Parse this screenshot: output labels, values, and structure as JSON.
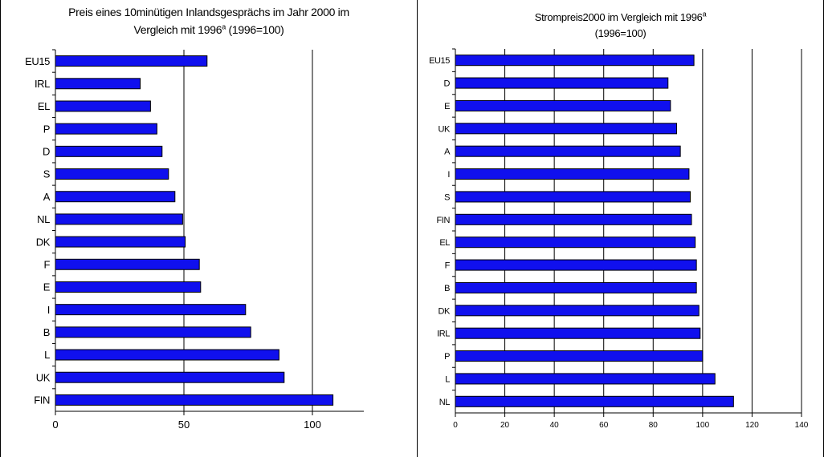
{
  "chart_data": [
    {
      "type": "bar",
      "orientation": "horizontal",
      "title": {
        "line1": "Preis eines 10minütigen Inlandsgesprächs im Jahr 2000 im",
        "line2_pre": "Vergleich mit 1996",
        "sup": "a",
        "line2_post": " (1996=100)"
      },
      "categories": [
        "EU15",
        "IRL",
        "EL",
        "P",
        "D",
        "S",
        "A",
        "NL",
        "DK",
        "F",
        "E",
        "I",
        "B",
        "L",
        "UK",
        "FIN"
      ],
      "values": [
        59,
        33,
        37,
        39.5,
        41.5,
        44,
        46.5,
        49.5,
        50.5,
        56,
        56.5,
        74,
        76,
        87,
        89,
        108
      ],
      "xlim": [
        0,
        120
      ],
      "xticks": [
        0,
        50,
        100
      ],
      "grid": "vertical"
    },
    {
      "type": "bar",
      "orientation": "horizontal",
      "title": {
        "line1_pre": "Strompreis2000 im Vergleich mit 1996",
        "sup": "a",
        "line2": "(1996=100)"
      },
      "categories": [
        "EU15",
        "D",
        "E",
        "UK",
        "A",
        "I",
        "S",
        "FIN",
        "EL",
        "F",
        "B",
        "DK",
        "IRL",
        "P",
        "L",
        "NL"
      ],
      "values": [
        96.5,
        86,
        87,
        89.5,
        91,
        94.5,
        95,
        95.5,
        97,
        97.5,
        97.5,
        98.5,
        99,
        100,
        105,
        112.5
      ],
      "xlim": [
        0,
        140
      ],
      "xticks": [
        0,
        20,
        40,
        60,
        80,
        100,
        120,
        140
      ],
      "grid": "vertical"
    }
  ]
}
